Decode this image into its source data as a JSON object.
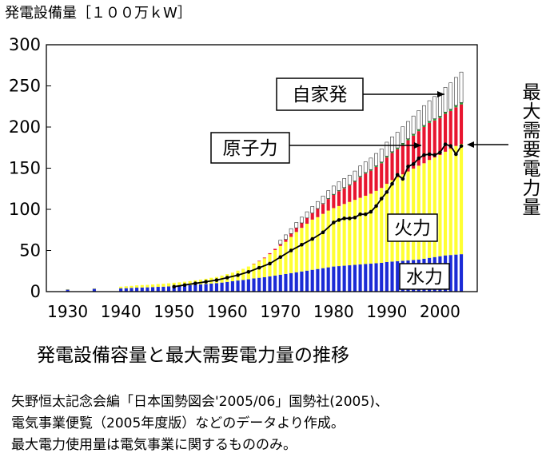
{
  "y_axis_unit": "発電設備量［１００万ｋW］",
  "caption": "発電設備容量と最大需要電力量の推移",
  "notes": [
    "矢野恒太記念会編「日本国勢図会'2005/06」国勢社(2005)、",
    "電気事業便覧（2005年度版）などのデータより作成。",
    "最大電力使用量は電気事業に関するもののみ。"
  ],
  "colors": {
    "hydro": "#1b2bd6",
    "thermal": "#ffff33",
    "nuclear": "#e8152f",
    "other": "#2f9b3a",
    "private": "#ffffff",
    "demand_line": "#000000"
  },
  "chart_data": {
    "type": "bar",
    "stacked": true,
    "title": "",
    "xlabel": "",
    "ylabel": "",
    "ylim": [
      0,
      300
    ],
    "y_ticks": [
      "0",
      "50",
      "100",
      "150",
      "200",
      "250",
      "300"
    ],
    "x_ticks": [
      "1930",
      "1940",
      "1950",
      "1960",
      "1970",
      "1980",
      "1990",
      "2000"
    ],
    "x_tick_values": [
      1930,
      1940,
      1950,
      1960,
      1970,
      1980,
      1990,
      2000
    ],
    "xlim": [
      1926,
      2007
    ],
    "grid": false,
    "legend": "none",
    "years": [
      1930,
      1935,
      1940,
      1941,
      1942,
      1943,
      1944,
      1945,
      1946,
      1947,
      1948,
      1949,
      1950,
      1951,
      1952,
      1953,
      1954,
      1955,
      1956,
      1957,
      1958,
      1959,
      1960,
      1961,
      1962,
      1963,
      1964,
      1965,
      1966,
      1967,
      1968,
      1969,
      1970,
      1971,
      1972,
      1973,
      1974,
      1975,
      1976,
      1977,
      1978,
      1979,
      1980,
      1981,
      1982,
      1983,
      1984,
      1985,
      1986,
      1987,
      1988,
      1989,
      1990,
      1991,
      1992,
      1993,
      1994,
      1995,
      1996,
      1997,
      1998,
      1999,
      2000,
      2001,
      2002,
      2003,
      2004
    ],
    "series": [
      {
        "name": "水力",
        "values": [
          2.5,
          3.5,
          4,
          4.2,
          4.5,
          4.8,
          5,
          5.2,
          5.5,
          5.8,
          6,
          6.3,
          6.8,
          7,
          7.3,
          7.8,
          8.3,
          8.8,
          9.3,
          9.8,
          10.3,
          11,
          11.8,
          12.6,
          13.5,
          14.2,
          15,
          16,
          16.8,
          17.5,
          18.5,
          19.5,
          20.5,
          21.5,
          22.5,
          23.5,
          24.5,
          25.5,
          26.5,
          27.5,
          28.5,
          29.5,
          30.5,
          31,
          31.5,
          32,
          32.5,
          33,
          33.5,
          34,
          34.5,
          35,
          36,
          36.5,
          37,
          37.5,
          38,
          38.5,
          39,
          40,
          41,
          42,
          43,
          44,
          44.5,
          45,
          45.5
        ]
      },
      {
        "name": "火力",
        "values": [
          0.5,
          0.5,
          2,
          2.3,
          2.5,
          2.8,
          3,
          3,
          3.2,
          3.4,
          3.6,
          3.8,
          4,
          4.3,
          4.7,
          5,
          5.4,
          5.8,
          6.3,
          7,
          7.5,
          8.5,
          9.5,
          10.5,
          12,
          13.5,
          15.5,
          17.5,
          20,
          23,
          27,
          31,
          35,
          39,
          44,
          49,
          53,
          57,
          61,
          63,
          66,
          69,
          71,
          73,
          75,
          77,
          79,
          81,
          83,
          85,
          88,
          91,
          95,
          99,
          102,
          105,
          108,
          111,
          114,
          116,
          119,
          121,
          123,
          126,
          129,
          132,
          134
        ]
      },
      {
        "name": "原子力",
        "values": [
          0,
          0,
          0,
          0,
          0,
          0,
          0,
          0,
          0,
          0,
          0,
          0,
          0,
          0,
          0,
          0,
          0,
          0,
          0,
          0,
          0,
          0,
          0,
          0,
          0,
          0,
          0,
          0.5,
          0.7,
          0.9,
          1.2,
          1.5,
          2,
          3,
          4,
          5,
          6,
          7,
          8,
          10,
          12,
          14,
          16,
          18,
          19,
          20,
          22,
          25,
          27,
          28,
          29,
          30,
          32,
          33,
          34,
          36,
          38,
          40,
          42,
          44,
          45,
          45,
          45,
          46,
          46,
          47,
          48
        ]
      },
      {
        "name": "",
        "values": [
          0,
          0,
          0,
          0,
          0,
          0,
          0,
          0,
          0,
          0,
          0,
          0,
          0,
          0,
          0,
          0,
          0,
          0,
          0,
          0,
          0,
          0,
          0,
          0,
          0,
          0,
          0,
          0,
          0,
          0,
          0,
          0,
          0,
          0,
          0,
          0,
          0,
          0,
          0,
          0.5,
          0.6,
          0.7,
          0.8,
          0.9,
          1,
          1,
          1,
          1.2,
          1.2,
          1.3,
          1.4,
          1.5,
          1.6,
          1.6,
          1.7,
          1.8,
          1.8,
          1.9,
          2,
          2,
          2,
          2.1,
          2.1,
          2.2,
          2.2,
          2.3,
          2.3
        ]
      },
      {
        "name": "自家発",
        "values": [
          0,
          0,
          0,
          0,
          0,
          0,
          0,
          0,
          0,
          0,
          0,
          0,
          0,
          0,
          0,
          0,
          0,
          0,
          0,
          0,
          0,
          0,
          0,
          0,
          0,
          0,
          0,
          0,
          0,
          0,
          0,
          0,
          5,
          5.5,
          6,
          6.5,
          7,
          7.5,
          8,
          8.5,
          9,
          9.5,
          10,
          10.5,
          11,
          11.5,
          12,
          12.5,
          13,
          14,
          15,
          16,
          17,
          18,
          19,
          20,
          21,
          22,
          23,
          24,
          25,
          27,
          28,
          30,
          32,
          34,
          37
        ]
      },
      {
        "name": "最大需要電力量",
        "type": "line",
        "x": [
          1950,
          1952,
          1954,
          1956,
          1958,
          1960,
          1962,
          1964,
          1966,
          1968,
          1970,
          1972,
          1974,
          1976,
          1978,
          1980,
          1981,
          1982,
          1983,
          1984,
          1985,
          1986,
          1987,
          1988,
          1989,
          1990,
          1991,
          1992,
          1993,
          1994,
          1995,
          1996,
          1997,
          1998,
          1999,
          2000,
          2001,
          2002,
          2003,
          2004
        ],
        "values": [
          6,
          8,
          10,
          12,
          14,
          17,
          20,
          24,
          29,
          34,
          42,
          50,
          57,
          64,
          72,
          84,
          87,
          89,
          89,
          90,
          94,
          94,
          97,
          104,
          113,
          121,
          131,
          142,
          137,
          152,
          155,
          162,
          166,
          167,
          166,
          169,
          179,
          177,
          167,
          177
        ]
      }
    ],
    "callouts": [
      {
        "label": "自家発",
        "target_series": "自家発"
      },
      {
        "label": "原子力",
        "target_series": "原子力"
      },
      {
        "label": "火力",
        "target_series": "火力"
      },
      {
        "label": "水力",
        "target_series": "水力"
      },
      {
        "label": "最大需要電力量",
        "target_series": "最大需要電力量"
      }
    ]
  }
}
